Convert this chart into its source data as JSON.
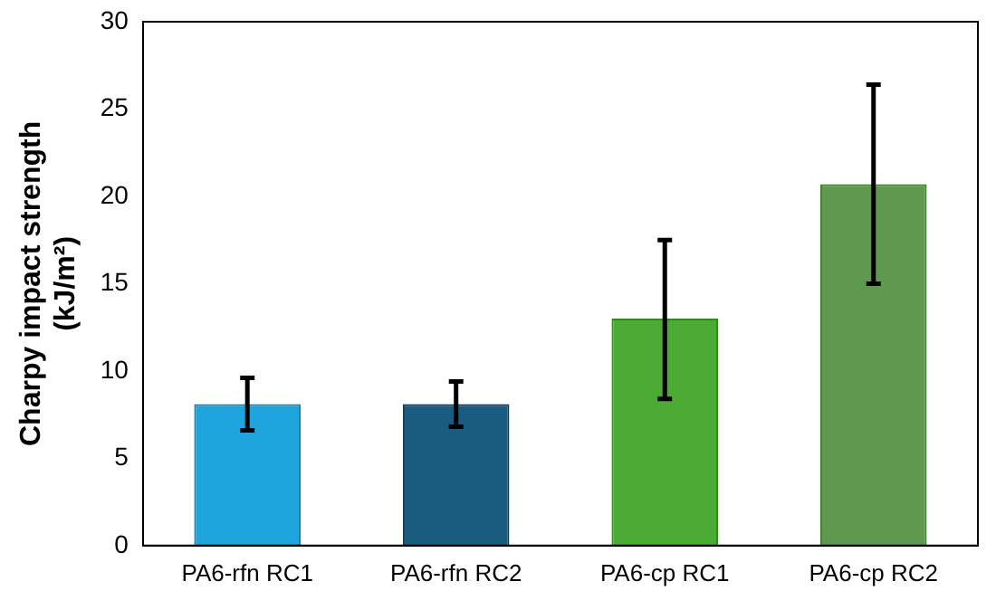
{
  "chart_data": {
    "type": "bar",
    "ylabel": "Charpy impact strength\n(kJ/m²)",
    "categories": [
      "PA6-rfn RC1",
      "PA6-rfn RC2",
      "PA6-cp RC1",
      "PA6-cp RC2"
    ],
    "values": [
      8.1,
      8.1,
      13.0,
      20.7
    ],
    "errors": [
      [
        6.6,
        9.6
      ],
      [
        6.8,
        9.4
      ],
      [
        8.4,
        17.5
      ],
      [
        15.0,
        26.4
      ]
    ],
    "colors": [
      "#1ea5dd",
      "#1a5c80",
      "#4cab34",
      "#5f9950"
    ],
    "ylim": [
      0,
      30
    ],
    "yticks": [
      0,
      5,
      10,
      15,
      20,
      25,
      30
    ],
    "grid": false,
    "legend": false
  }
}
